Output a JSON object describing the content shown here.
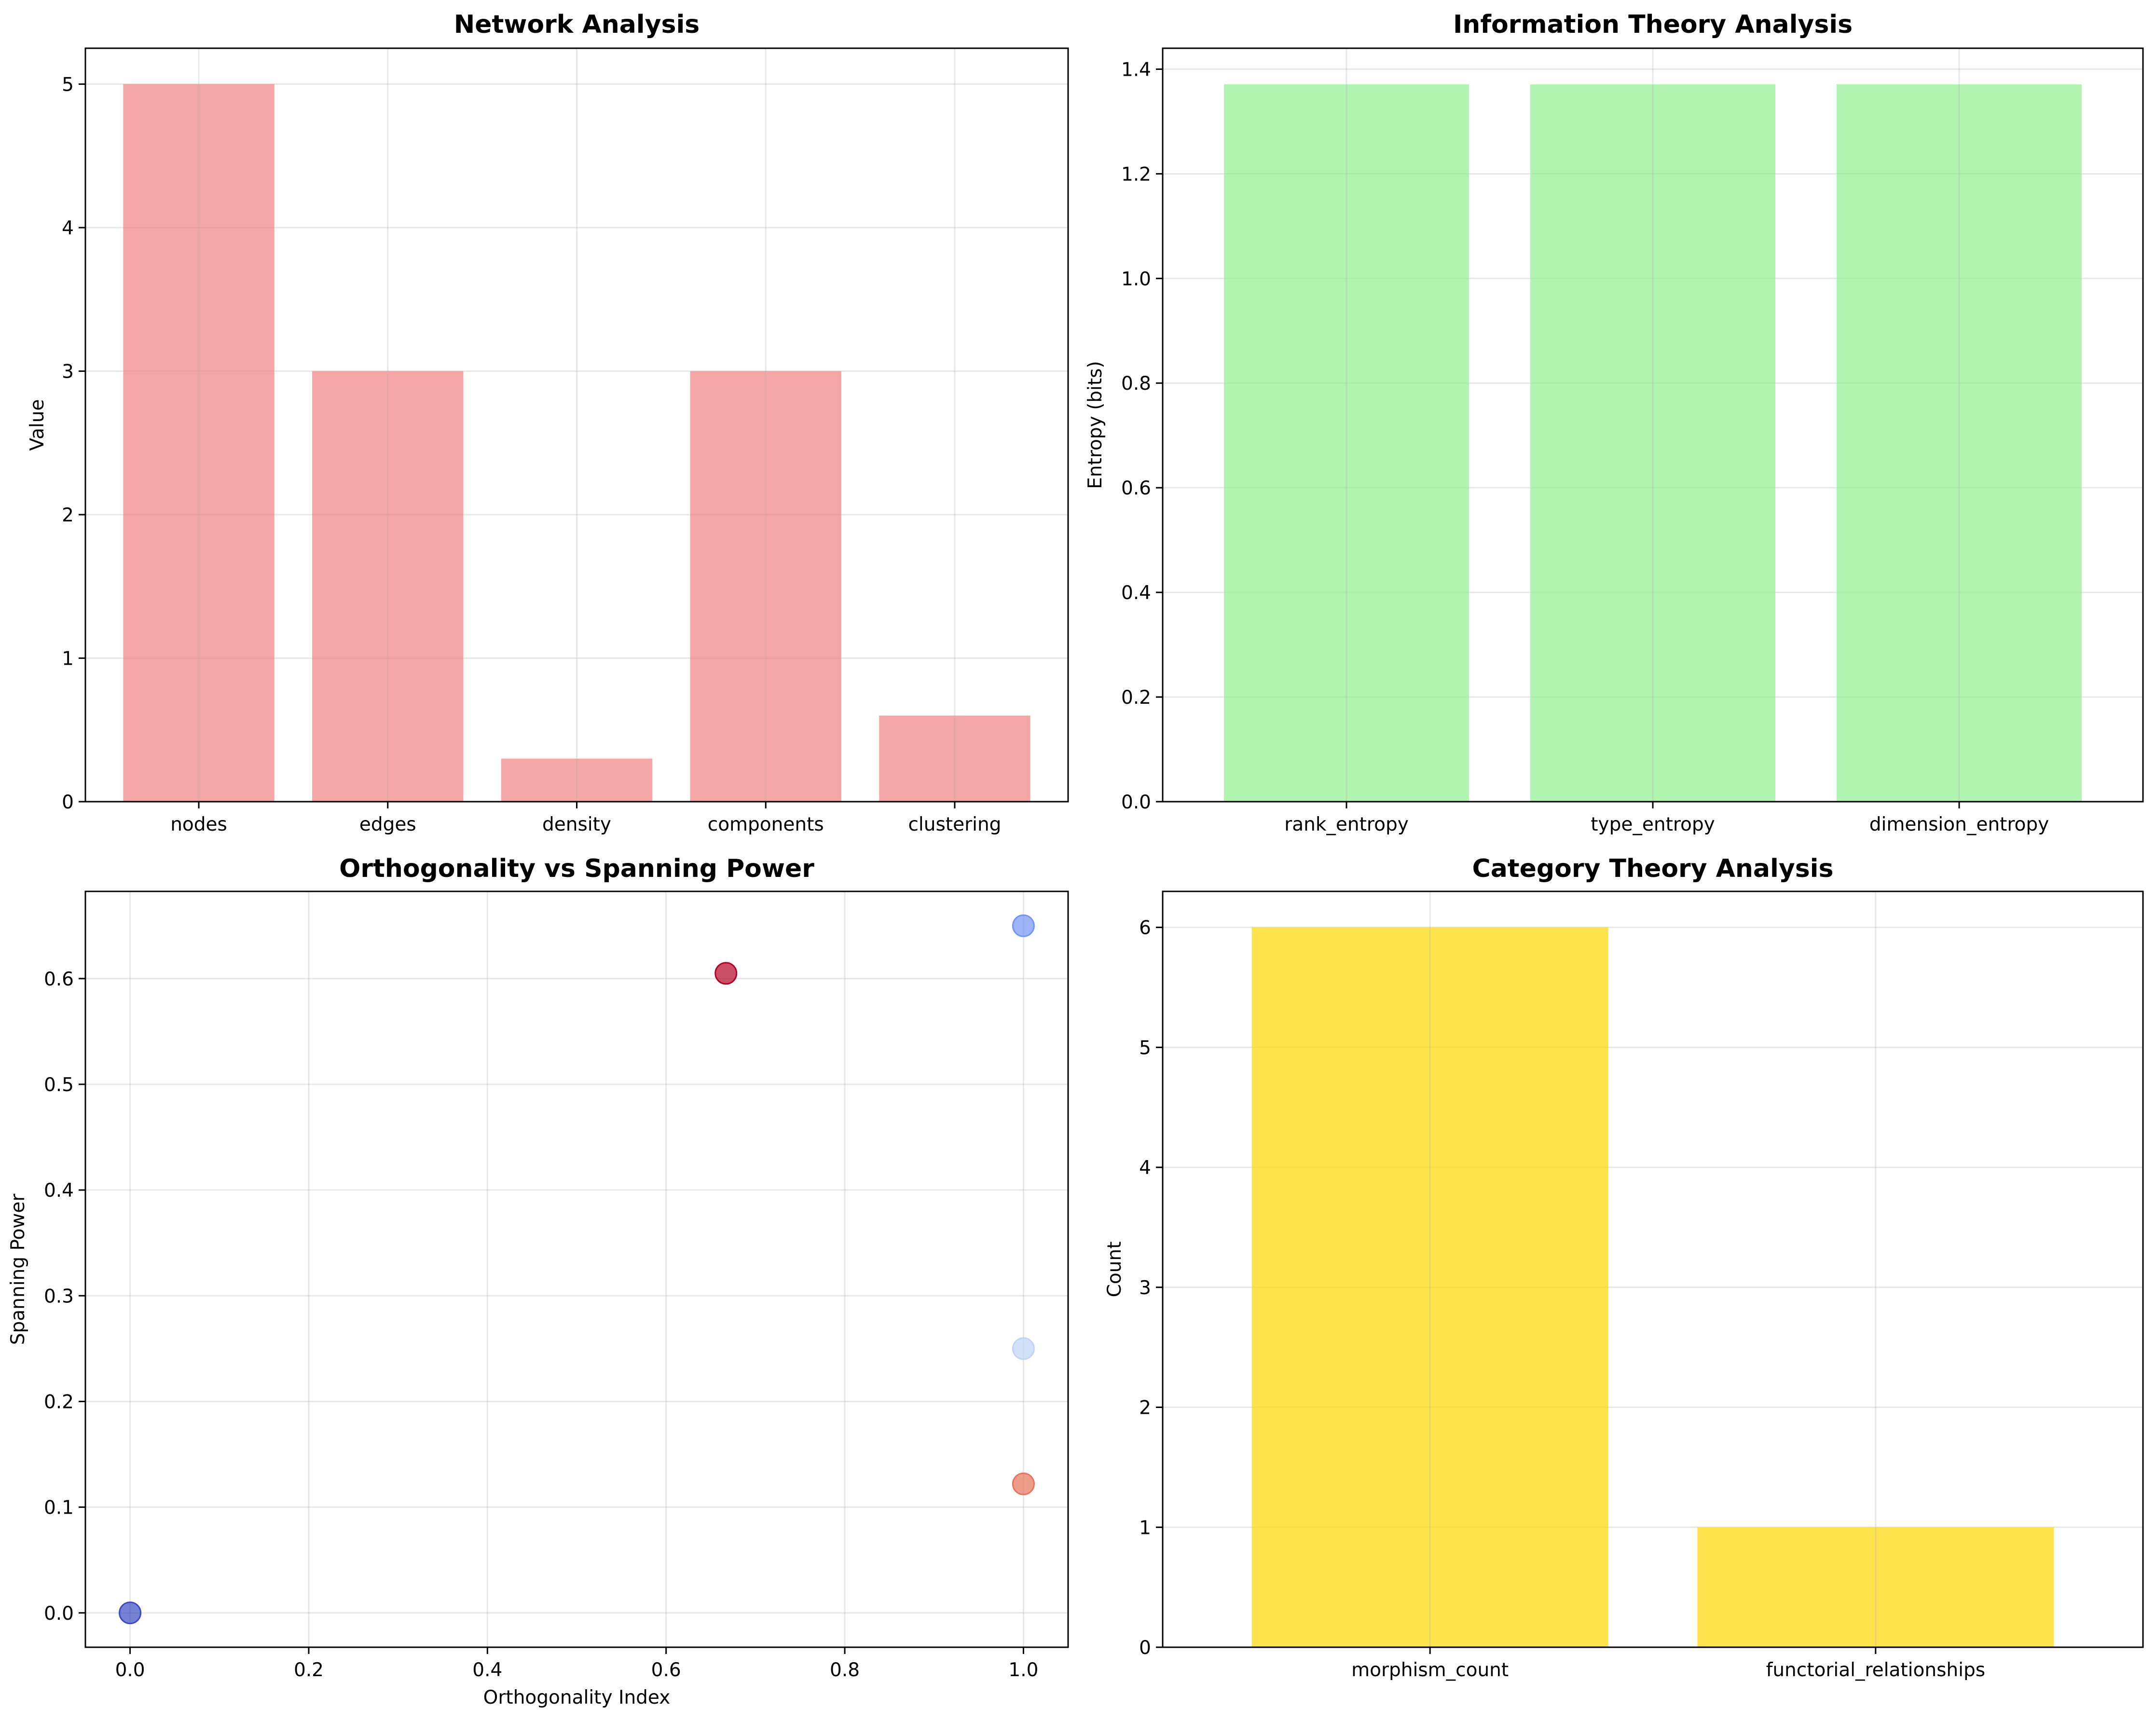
{
  "chart_data": [
    {
      "type": "bar",
      "title": "Network Analysis",
      "xlabel": "",
      "ylabel": "Value",
      "categories": [
        "nodes",
        "edges",
        "density",
        "components",
        "clustering"
      ],
      "values": [
        5,
        3,
        0.3,
        3,
        0.6
      ],
      "ylim": [
        0,
        5.25
      ],
      "yticks": [
        0,
        1,
        2,
        3,
        4,
        5
      ],
      "ytick_labels": [
        "0",
        "1",
        "2",
        "3",
        "4",
        "5"
      ],
      "color": "#f08080",
      "opacity": 0.7,
      "grid": true
    },
    {
      "type": "bar",
      "title": "Information Theory Analysis",
      "xlabel": "",
      "ylabel": "Entropy (bits)",
      "categories": [
        "rank_entropy",
        "type_entropy",
        "dimension_entropy"
      ],
      "values": [
        1.371,
        1.371,
        1.371
      ],
      "ylim": [
        0,
        1.44
      ],
      "yticks": [
        0,
        0.2,
        0.4,
        0.6,
        0.8,
        1.0,
        1.2,
        1.4
      ],
      "ytick_labels": [
        "0.0",
        "0.2",
        "0.4",
        "0.6",
        "0.8",
        "1.0",
        "1.2",
        "1.4"
      ],
      "color": "#90ee90",
      "opacity": 0.7,
      "grid": true
    },
    {
      "type": "scatter",
      "title": "Orthogonality vs Spanning Power",
      "xlabel": "Orthogonality Index",
      "ylabel": "Spanning Power",
      "points": [
        {
          "x": 0.0,
          "y": 0.0,
          "color": "#3b4cc0"
        },
        {
          "x": 0.667,
          "y": 0.605,
          "color": "#b40426"
        },
        {
          "x": 1.0,
          "y": 0.65,
          "color": "#7396f5"
        },
        {
          "x": 1.0,
          "y": 0.25,
          "color": "#c0d4f5"
        },
        {
          "x": 1.0,
          "y": 0.122,
          "color": "#e7745b"
        }
      ],
      "xlim": [
        -0.05,
        1.05
      ],
      "ylim": [
        -0.0325,
        0.6825
      ],
      "xticks": [
        0,
        0.2,
        0.4,
        0.6,
        0.8,
        1.0
      ],
      "xtick_labels": [
        "0.0",
        "0.2",
        "0.4",
        "0.6",
        "0.8",
        "1.0"
      ],
      "yticks": [
        0,
        0.1,
        0.2,
        0.3,
        0.4,
        0.5,
        0.6
      ],
      "ytick_labels": [
        "0.0",
        "0.1",
        "0.2",
        "0.3",
        "0.4",
        "0.5",
        "0.6"
      ],
      "opacity": 0.7,
      "grid": true
    },
    {
      "type": "bar",
      "title": "Category Theory Analysis",
      "xlabel": "",
      "ylabel": "Count",
      "categories": [
        "morphism_count",
        "functorial_relationships"
      ],
      "values": [
        6,
        1
      ],
      "ylim": [
        0,
        6.3
      ],
      "yticks": [
        0,
        1,
        2,
        3,
        4,
        5,
        6
      ],
      "ytick_labels": [
        "0",
        "1",
        "2",
        "3",
        "4",
        "5",
        "6"
      ],
      "color": "#ffd700",
      "opacity": 0.7,
      "grid": true
    }
  ]
}
